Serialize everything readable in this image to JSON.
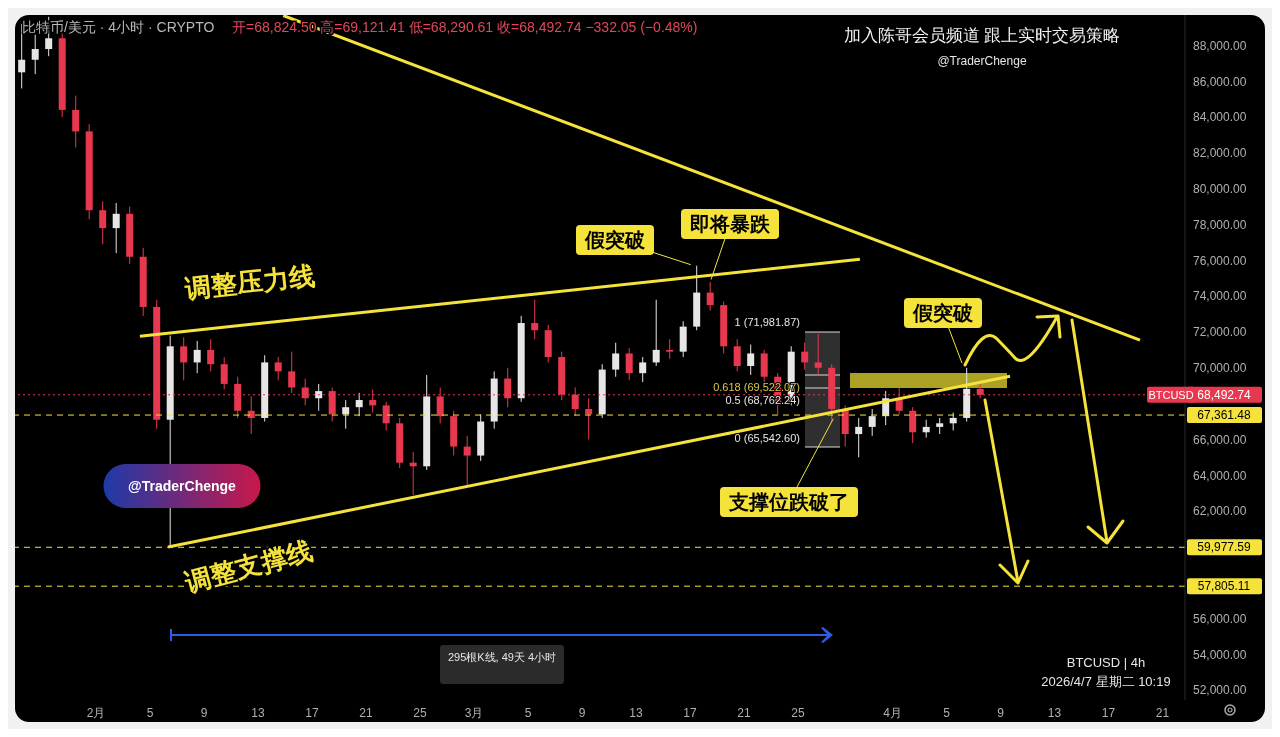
{
  "chart_data": {
    "type": "candlestick",
    "title": "加入陈哥会员频道  跟上实时交易策略",
    "subtitle": "@TraderChenge",
    "x": [
      "2026-01-26T12:00",
      "2026-01-27T12:00",
      "2026-01-28T12:00",
      "2026-01-29T12:00",
      "2026-01-30T12:00",
      "2026-01-31T12:00",
      "2026-02-01T12:00",
      "2026-02-02T12:00",
      "2026-02-03T12:00",
      "2026-02-04T12:00",
      "2026-02-05T12:00",
      "2026-02-06T12:00",
      "2026-02-07T12:00",
      "2026-02-08T12:00",
      "2026-02-09T12:00",
      "2026-02-10T12:00",
      "2026-02-11T12:00",
      "2026-02-12T12:00",
      "2026-02-13T12:00",
      "2026-02-14T12:00",
      "2026-02-15T12:00",
      "2026-02-16T12:00",
      "2026-02-17T12:00",
      "2026-02-18T12:00",
      "2026-02-19T12:00",
      "2026-02-20T12:00",
      "2026-02-21T12:00",
      "2026-02-22T12:00",
      "2026-02-23T12:00",
      "2026-02-24T12:00",
      "2026-02-25T12:00",
      "2026-02-26T12:00",
      "2026-02-27T12:00",
      "2026-02-28T12:00",
      "2026-03-01T12:00",
      "2026-03-02T12:00",
      "2026-03-03T12:00",
      "2026-03-04T12:00",
      "2026-03-05T12:00",
      "2026-03-06T12:00",
      "2026-03-07T12:00",
      "2026-03-08T12:00",
      "2026-03-09T12:00",
      "2026-03-10T12:00",
      "2026-03-11T12:00",
      "2026-03-12T12:00",
      "2026-03-13T12:00",
      "2026-03-14T12:00",
      "2026-03-15T12:00",
      "2026-03-16T12:00",
      "2026-03-17T12:00",
      "2026-03-18T12:00",
      "2026-03-19T12:00",
      "2026-03-20T12:00",
      "2026-03-21T12:00",
      "2026-03-22T12:00",
      "2026-03-23T12:00",
      "2026-03-24T12:00",
      "2026-03-25T12:00",
      "2026-03-26T12:00",
      "2026-03-27T12:00",
      "2026-03-28T12:00",
      "2026-03-29T12:00",
      "2026-03-30T12:00",
      "2026-03-31T12:00",
      "2026-04-01T12:00",
      "2026-04-02T12:00",
      "2026-04-03T12:00",
      "2026-04-04T12:00",
      "2026-04-05T12:00",
      "2026-04-06T12:00",
      "2026-04-07T12:00"
    ],
    "ohlc": [
      [
        86500,
        89200,
        85600,
        87200
      ],
      [
        87200,
        88600,
        86400,
        87800
      ],
      [
        87800,
        89600,
        87400,
        88400
      ],
      [
        88400,
        88700,
        84000,
        84400
      ],
      [
        84400,
        85200,
        82300,
        83200
      ],
      [
        83200,
        83600,
        78300,
        78800
      ],
      [
        78800,
        79300,
        76900,
        77800
      ],
      [
        77800,
        79200,
        76400,
        78600
      ],
      [
        78600,
        79000,
        75800,
        76200
      ],
      [
        76200,
        76700,
        72900,
        73400
      ],
      [
        73400,
        73800,
        66600,
        67100
      ],
      [
        67100,
        71800,
        60000,
        71200
      ],
      [
        71200,
        71700,
        69300,
        70300
      ],
      [
        70300,
        71500,
        69700,
        71000
      ],
      [
        71000,
        71600,
        69800,
        70200
      ],
      [
        70200,
        70600,
        68800,
        69100
      ],
      [
        69100,
        69500,
        67200,
        67600
      ],
      [
        67600,
        68400,
        66300,
        67200
      ],
      [
        67200,
        70700,
        67000,
        70300
      ],
      [
        70300,
        70600,
        69300,
        69800
      ],
      [
        69800,
        70900,
        68600,
        68900
      ],
      [
        68900,
        69400,
        67900,
        68300
      ],
      [
        68300,
        69100,
        67600,
        68700
      ],
      [
        68700,
        68900,
        67000,
        67400
      ],
      [
        67400,
        68200,
        66600,
        67800
      ],
      [
        67800,
        68600,
        67300,
        68200
      ],
      [
        68200,
        68800,
        67500,
        67900
      ],
      [
        67900,
        68100,
        66500,
        66900
      ],
      [
        66900,
        67200,
        64400,
        64700
      ],
      [
        64700,
        65300,
        62900,
        64500
      ],
      [
        64500,
        69600,
        64300,
        68400
      ],
      [
        68400,
        68900,
        66900,
        67300
      ],
      [
        67300,
        67600,
        65100,
        65600
      ],
      [
        65600,
        66200,
        63400,
        65100
      ],
      [
        65100,
        67400,
        64800,
        67000
      ],
      [
        67000,
        69800,
        66600,
        69400
      ],
      [
        69400,
        70000,
        67800,
        68300
      ],
      [
        68300,
        72900,
        68100,
        72500
      ],
      [
        72500,
        73800,
        71600,
        72100
      ],
      [
        72100,
        72400,
        70300,
        70600
      ],
      [
        70600,
        70900,
        68200,
        68500
      ],
      [
        68500,
        68900,
        67300,
        67700
      ],
      [
        67700,
        68300,
        66000,
        67400
      ],
      [
        67400,
        70200,
        67200,
        69900
      ],
      [
        69900,
        71400,
        69500,
        70800
      ],
      [
        70800,
        71100,
        69300,
        69700
      ],
      [
        69700,
        70600,
        69200,
        70300
      ],
      [
        70300,
        73800,
        70100,
        71000
      ],
      [
        71000,
        71600,
        70500,
        70900
      ],
      [
        70900,
        72600,
        70600,
        72300
      ],
      [
        72300,
        75700,
        72100,
        74200
      ],
      [
        74200,
        74800,
        73200,
        73500
      ],
      [
        73500,
        73700,
        70800,
        71200
      ],
      [
        71200,
        71600,
        69800,
        70100
      ],
      [
        70100,
        71300,
        69600,
        70800
      ],
      [
        70800,
        71000,
        69200,
        69500
      ],
      [
        69500,
        69700,
        67400,
        68100
      ],
      [
        68100,
        71200,
        67900,
        70900
      ],
      [
        70900,
        71400,
        69900,
        70300
      ],
      [
        70300,
        71900,
        69600,
        70000
      ],
      [
        70000,
        70200,
        67000,
        67700
      ],
      [
        67700,
        67900,
        65600,
        66300
      ],
      [
        66300,
        67200,
        65000,
        66700
      ],
      [
        66700,
        67700,
        66200,
        67300
      ],
      [
        67300,
        68700,
        66800,
        68300
      ],
      [
        68300,
        68900,
        67400,
        67600
      ],
      [
        67600,
        67800,
        65800,
        66400
      ],
      [
        66400,
        67100,
        66100,
        66700
      ],
      [
        66700,
        67200,
        66300,
        66900
      ],
      [
        66900,
        67500,
        66500,
        67200
      ],
      [
        67200,
        70000,
        67000,
        68824.5
      ],
      [
        68824.5,
        69121.41,
        68290.61,
        68492.74
      ]
    ],
    "series": [
      {
        "type": "line",
        "color": "#f5e33b",
        "x": [
          "2026-02-04T06:00",
          "2026-03-29T14:00"
        ],
        "values": [
          71760,
          76060
        ]
      },
      {
        "type": "line",
        "color": "#f5e33b",
        "x": [
          "2026-02-06T08:00",
          "2026-04-09T17:00"
        ],
        "values": [
          59990,
          69530
        ]
      },
      {
        "type": "line",
        "color": "#f5e33b",
        "x": [
          "2026-02-14T21:00",
          "2026-04-19T08:00"
        ],
        "values": [
          89670,
          71540
        ]
      }
    ],
    "xlim": [
      "2026-01-26",
      "2026-04-22T16:00"
    ],
    "xticks": [
      {
        "value": "2026-02-01",
        "label": "2月"
      },
      {
        "value": "2026-02-05",
        "label": "5"
      },
      {
        "value": "2026-02-09",
        "label": "9"
      },
      {
        "value": "2026-02-13",
        "label": "13"
      },
      {
        "value": "2026-02-17",
        "label": "17"
      },
      {
        "value": "2026-02-21",
        "label": "21"
      },
      {
        "value": "2026-02-25",
        "label": "25"
      },
      {
        "value": "2026-03-01",
        "label": "3月"
      },
      {
        "value": "2026-03-05",
        "label": "5"
      },
      {
        "value": "2026-03-09",
        "label": "9"
      },
      {
        "value": "2026-03-13",
        "label": "13"
      },
      {
        "value": "2026-03-17",
        "label": "17"
      },
      {
        "value": "2026-03-21",
        "label": "21"
      },
      {
        "value": "2026-03-25",
        "label": "25"
      },
      {
        "value": "2026-04-01",
        "label": "4月"
      },
      {
        "value": "2026-04-05",
        "label": "5"
      },
      {
        "value": "2026-04-09",
        "label": "9"
      },
      {
        "value": "2026-04-13",
        "label": "13"
      },
      {
        "value": "2026-04-17",
        "label": "17"
      },
      {
        "value": "2026-04-21",
        "label": "21"
      }
    ],
    "ylim": [
      51450,
      89700
    ],
    "yticks": [
      {
        "value": 52000,
        "label": "52,000.00"
      },
      {
        "value": 54000,
        "label": "54,000.00"
      },
      {
        "value": 56000,
        "label": "56,000.00"
      },
      {
        "value": 62000,
        "label": "62,000.00"
      },
      {
        "value": 64000,
        "label": "64,000.00"
      },
      {
        "value": 66000,
        "label": "66,000.00"
      },
      {
        "value": 70000,
        "label": "70,000.00"
      },
      {
        "value": 72000,
        "label": "72,000.00"
      },
      {
        "value": 74000,
        "label": "74,000.00"
      },
      {
        "value": 76000,
        "label": "76,000.00"
      },
      {
        "value": 78000,
        "label": "78,000.00"
      },
      {
        "value": 80000,
        "label": "80,000.00"
      },
      {
        "value": 82000,
        "label": "82,000.00"
      },
      {
        "value": 84000,
        "label": "84,000.00"
      },
      {
        "value": 86000,
        "label": "86,000.00"
      },
      {
        "value": 88000,
        "label": "88,000.00"
      }
    ],
    "ref_lines": [
      {
        "axis": "y",
        "value": 68492.74,
        "label": "68,492.74",
        "color": "#e8384f",
        "line_style": "dotted"
      },
      {
        "axis": "y",
        "value": 67361.48,
        "label": "67,361.48",
        "color": "#f5e33b",
        "line_style": "dashed"
      },
      {
        "axis": "y",
        "value": 59977.59,
        "label": "59,977.59",
        "color": "#f5e33b",
        "line_style": "dashed"
      },
      {
        "axis": "y",
        "value": 57805.11,
        "label": "57,805.11",
        "color": "#f5e33b",
        "line_style": "dashed"
      }
    ],
    "annotations": [
      "比特币/美元 · 4小时 · CRYPTO",
      "开=68,824.50 高=69,121.41 低=68,290.61 收=68,492.74 −332.05 (−0.48%)",
      "调整压力线",
      "调整支撑线",
      {
        "text": "假突破",
        "x": "2026-03-17T07:00",
        "y": 75700
      },
      {
        "text": "即将暴跌",
        "x": "2026-03-18T12:00",
        "y": 74800
      },
      {
        "text": "支撑位跌破了",
        "x": "2026-03-27T18:00",
        "y": 67350
      },
      {
        "text": "假突破",
        "x": "2026-04-06T05:00",
        "y": 70140
      },
      "1 (71,981.87)",
      "0.618 (69,522.07)",
      "0.5 (68,762.24)",
      "0 (65,542.60)",
      "295根K线, 49天 4小时",
      "BTCUSD | 4h",
      "2026/4/7 星期二 10:19",
      "BTCUSD",
      "@TraderChenge"
    ]
  }
}
